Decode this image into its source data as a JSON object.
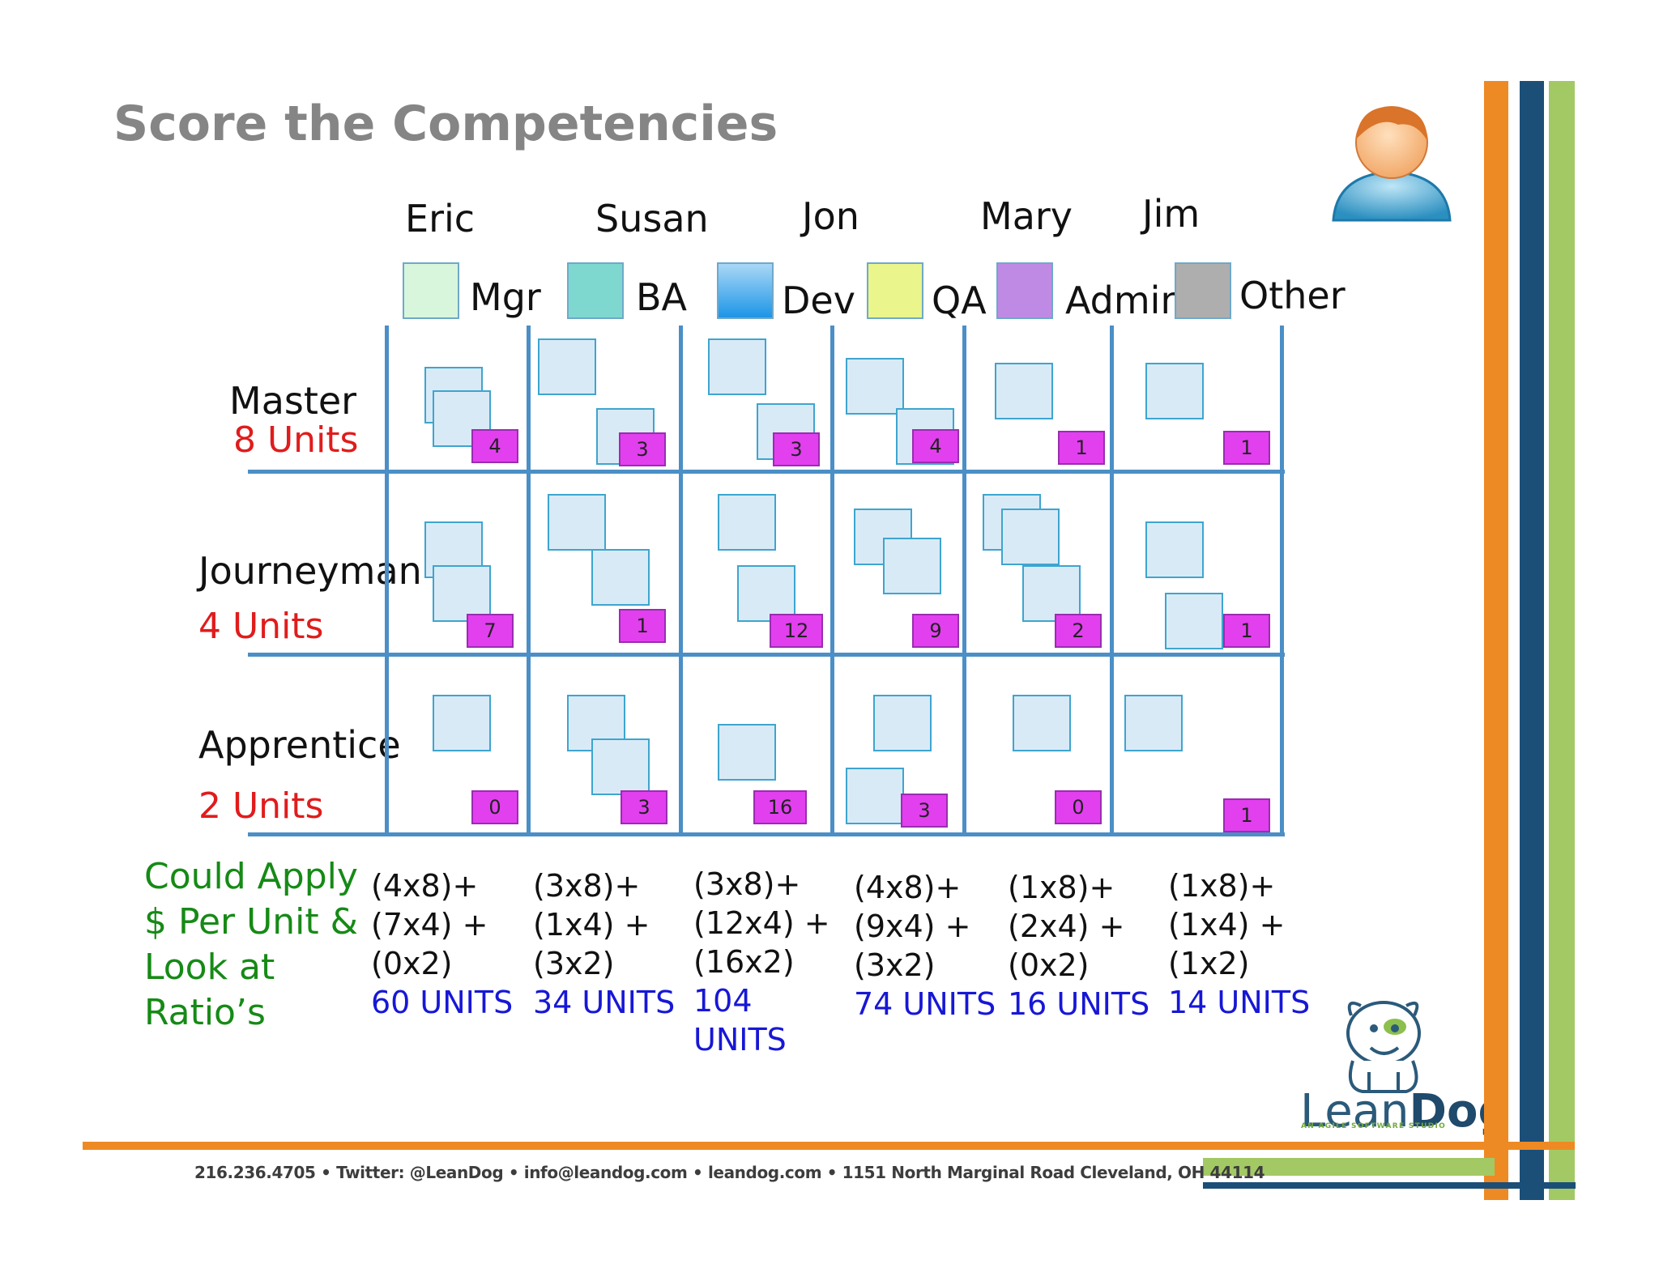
{
  "title": "Score the Competencies",
  "people": [
    "Eric",
    "Susan",
    "Jon",
    "Mary",
    "Jim"
  ],
  "legend": [
    {
      "label": "Mgr",
      "color": "#d8f6dc"
    },
    {
      "label": "BA",
      "color": "#7ed8cf"
    },
    {
      "label": "Dev",
      "color": "#3fa9ec"
    },
    {
      "label": "QA",
      "color": "#eaf58c"
    },
    {
      "label": "Admin",
      "color": "#bf8ae4"
    },
    {
      "label": "Other",
      "color": "#aeaeae"
    }
  ],
  "levels": [
    {
      "name": "Master",
      "units": "8 Units"
    },
    {
      "name": "Journeyman",
      "units": "4 Units"
    },
    {
      "name": "Apprentice",
      "units": "2 Units"
    }
  ],
  "counts": [
    [
      "4",
      "3",
      "3",
      "4",
      "1",
      "1"
    ],
    [
      "7",
      "1",
      "12",
      "9",
      "2",
      "1"
    ],
    [
      "0",
      "3",
      "16",
      "3",
      "0",
      "1"
    ]
  ],
  "note": [
    "Could Apply",
    "$ Per Unit &",
    "Look at",
    "Ratio’s"
  ],
  "formulas": [
    {
      "l1": "(4x8)+",
      "l2": "(7x4) +",
      "l3": "(0x2)",
      "total": "60 UNITS"
    },
    {
      "l1": "(3x8)+",
      "l2": "(1x4) +",
      "l3": "(3x2)",
      "total": "34 UNITS"
    },
    {
      "l1": "(3x8)+",
      "l2": "(12x4) +",
      "l3": "(16x2)",
      "total": "104\nUNITS"
    },
    {
      "l1": "(4x8)+",
      "l2": "(9x4) +",
      "l3": "(3x2)",
      "total": "74 UNITS"
    },
    {
      "l1": "(1x8)+",
      "l2": "(2x4) +",
      "l3": "(0x2)",
      "total": "16 UNITS"
    },
    {
      "l1": "(1x8)+",
      "l2": "(1x4) +",
      "l3": "(1x2)",
      "total": "14 UNITS"
    }
  ],
  "footer": "216.236.4705 • Twitter: @LeanDog • info@leandog.com • leandog.com • 1151 North Marginal Road Cleveland, OH 44114",
  "logo": {
    "word_a": "Lean",
    "word_b": "Dog",
    "tagline": "AN AGILE SOFTWARE STUDIO"
  },
  "colors": {
    "title": "#858585",
    "grid": "#4b8fc6",
    "card": "#d9eaf7",
    "count_badge": "#e23fef",
    "units_red": "#e01c1c",
    "note_green": "#168a16",
    "total_blue": "#1717d6",
    "stripe_orange": "#ee8a23",
    "stripe_navy": "#1b4f78",
    "stripe_green": "#a3c965"
  },
  "icons": [
    "user-avatar-icon",
    "leandog-bulldog-icon"
  ]
}
